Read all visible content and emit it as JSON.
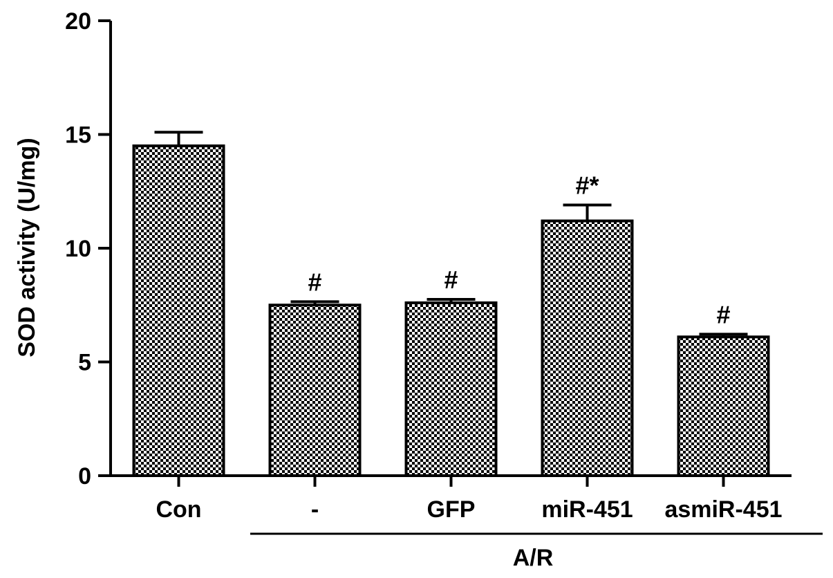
{
  "chart_data": {
    "type": "bar",
    "title": "",
    "ylabel": "SOD activity (U/mg)",
    "xlabel": "",
    "ylim": [
      0,
      20
    ],
    "yticks": [
      0,
      5,
      10,
      15,
      20
    ],
    "categories": [
      "Con",
      "-",
      "GFP",
      "miR-451",
      "asmiR-451"
    ],
    "values": [
      14.5,
      7.5,
      7.6,
      11.2,
      6.1
    ],
    "errors": [
      0.6,
      0.15,
      0.15,
      0.7,
      0.12
    ],
    "annotations": [
      "",
      "#",
      "#",
      "#*",
      "#"
    ],
    "group_label": "A/R",
    "group_spans": [
      {
        "label_index": 1,
        "from": 1,
        "to": 4
      }
    ],
    "pattern": "checkerboard",
    "grid": false,
    "legend": "none"
  }
}
